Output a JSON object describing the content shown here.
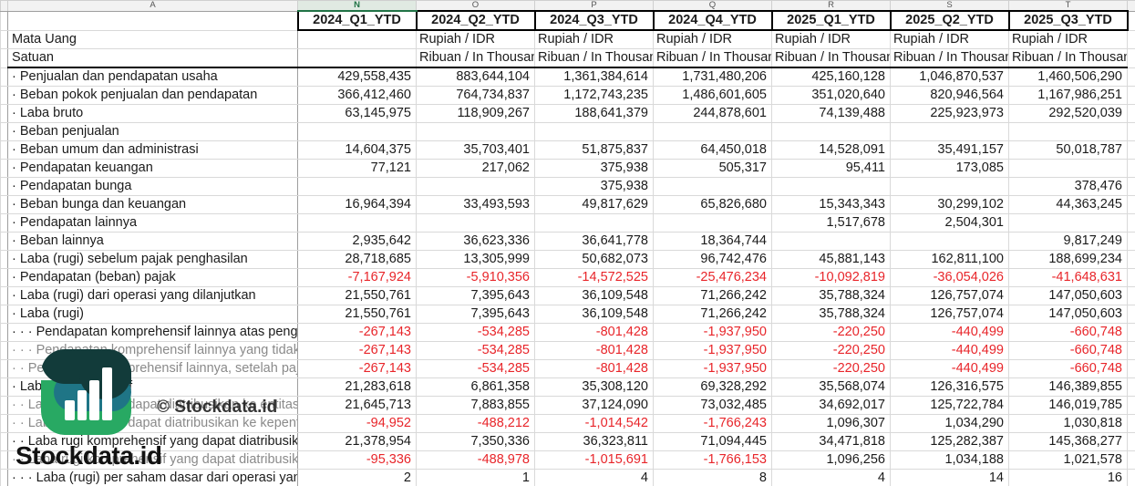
{
  "sheet": {
    "column_letters": [
      "A",
      "N",
      "O",
      "P",
      "Q",
      "R",
      "S",
      "T"
    ],
    "selected_column": "N",
    "headers": [
      "2024_Q1_YTD",
      "2024_Q2_YTD",
      "2024_Q3_YTD",
      "2024_Q4_YTD",
      "2025_Q1_YTD",
      "2025_Q2_YTD",
      "2025_Q3_YTD"
    ],
    "rows": [
      {
        "label": "Mata Uang",
        "type": "text",
        "muted": false,
        "values": [
          "",
          "Rupiah / IDR",
          "Rupiah / IDR",
          "Rupiah / IDR",
          "Rupiah / IDR",
          "Rupiah / IDR",
          "Rupiah / IDR"
        ]
      },
      {
        "label": "Satuan",
        "type": "text",
        "muted": false,
        "values": [
          "",
          "Ribuan / In Thousand",
          "Ribuan / In Thousand",
          "Ribuan / In Thousand",
          "Ribuan / In Thousand",
          "Ribuan / In Thousand",
          "Ribuan / In Thousand"
        ]
      },
      {
        "label": "· Penjualan dan pendapatan usaha",
        "type": "num",
        "muted": false,
        "values": [
          "429,558,435",
          "883,644,104",
          "1,361,384,614",
          "1,731,480,206",
          "425,160,128",
          "1,046,870,537",
          "1,460,506,290"
        ]
      },
      {
        "label": "· Beban pokok penjualan dan pendapatan",
        "type": "num",
        "muted": false,
        "values": [
          "366,412,460",
          "764,734,837",
          "1,172,743,235",
          "1,486,601,605",
          "351,020,640",
          "820,946,564",
          "1,167,986,251"
        ]
      },
      {
        "label": "· Laba bruto",
        "type": "num",
        "muted": false,
        "values": [
          "63,145,975",
          "118,909,267",
          "188,641,379",
          "244,878,601",
          "74,139,488",
          "225,923,973",
          "292,520,039"
        ]
      },
      {
        "label": "· Beban penjualan",
        "type": "num",
        "muted": false,
        "values": [
          "",
          "",
          "",
          "",
          "",
          "",
          ""
        ]
      },
      {
        "label": "· Beban umum dan administrasi",
        "type": "num",
        "muted": false,
        "values": [
          "14,604,375",
          "35,703,401",
          "51,875,837",
          "64,450,018",
          "14,528,091",
          "35,491,157",
          "50,018,787"
        ]
      },
      {
        "label": "· Pendapatan keuangan",
        "type": "num",
        "muted": false,
        "values": [
          "77,121",
          "217,062",
          "375,938",
          "505,317",
          "95,411",
          "173,085",
          ""
        ]
      },
      {
        "label": "· Pendapatan bunga",
        "type": "num",
        "muted": false,
        "values": [
          "",
          "",
          "375,938",
          "",
          "",
          "",
          "378,476"
        ]
      },
      {
        "label": "· Beban bunga dan keuangan",
        "type": "num",
        "muted": false,
        "values": [
          "16,964,394",
          "33,493,593",
          "49,817,629",
          "65,826,680",
          "15,343,343",
          "30,299,102",
          "44,363,245"
        ]
      },
      {
        "label": "· Pendapatan lainnya",
        "type": "num",
        "muted": false,
        "values": [
          "",
          "",
          "",
          "",
          "1,517,678",
          "2,504,301",
          ""
        ]
      },
      {
        "label": "· Beban lainnya",
        "type": "num",
        "muted": false,
        "values": [
          "2,935,642",
          "36,623,336",
          "36,641,778",
          "18,364,744",
          "",
          "",
          "9,817,249"
        ]
      },
      {
        "label": "· Laba (rugi) sebelum pajak penghasilan",
        "type": "num",
        "muted": false,
        "values": [
          "28,718,685",
          "13,305,999",
          "50,682,073",
          "96,742,476",
          "45,881,143",
          "162,811,100",
          "188,699,234"
        ]
      },
      {
        "label": "· Pendapatan (beban) pajak",
        "type": "num",
        "muted": false,
        "values": [
          "-7,167,924",
          "-5,910,356",
          "-14,572,525",
          "-25,476,234",
          "-10,092,819",
          "-36,054,026",
          "-41,648,631"
        ]
      },
      {
        "label": "· Laba (rugi) dari operasi yang dilanjutkan",
        "type": "num",
        "muted": false,
        "values": [
          "21,550,761",
          "7,395,643",
          "36,109,548",
          "71,266,242",
          "35,788,324",
          "126,757,074",
          "147,050,603"
        ]
      },
      {
        "label": "· Laba (rugi)",
        "type": "num",
        "muted": false,
        "values": [
          "21,550,761",
          "7,395,643",
          "36,109,548",
          "71,266,242",
          "35,788,324",
          "126,757,074",
          "147,050,603"
        ]
      },
      {
        "label": "· · · Pendapatan komprehensif lainnya atas pengukuran",
        "type": "num",
        "muted": false,
        "values": [
          "-267,143",
          "-534,285",
          "-801,428",
          "-1,937,950",
          "-220,250",
          "-440,499",
          "-660,748"
        ]
      },
      {
        "label": "· · · Pendapatan komprehensif lainnya yang tidak akan",
        "type": "num",
        "muted": true,
        "values": [
          "-267,143",
          "-534,285",
          "-801,428",
          "-1,937,950",
          "-220,250",
          "-440,499",
          "-660,748"
        ]
      },
      {
        "label": "· · Pendapatan komprehensif lainnya, setelah pajak",
        "type": "num",
        "muted": true,
        "values": [
          "-267,143",
          "-534,285",
          "-801,428",
          "-1,937,950",
          "-220,250",
          "-440,499",
          "-660,748"
        ]
      },
      {
        "label": "· Laba komprehensif",
        "type": "num",
        "muted": false,
        "values": [
          "21,283,618",
          "6,861,358",
          "35,308,120",
          "69,328,292",
          "35,568,074",
          "126,316,575",
          "146,389,855"
        ]
      },
      {
        "label": "· · Laba (rugi) yang dapat diatribusikan ke entitas induk",
        "type": "num",
        "muted": true,
        "values": [
          "21,645,713",
          "7,883,855",
          "37,124,090",
          "73,032,485",
          "34,692,017",
          "125,722,784",
          "146,019,785"
        ]
      },
      {
        "label": "· · Laba (rugi) yang dapat diatribusikan ke kepentingan",
        "type": "num",
        "muted": true,
        "values": [
          "-94,952",
          "-488,212",
          "-1,014,542",
          "-1,766,243",
          "1,096,307",
          "1,034,290",
          "1,030,818"
        ]
      },
      {
        "label": "· · Laba rugi komprehensif yang dapat diatribusikan",
        "type": "num",
        "muted": false,
        "values": [
          "21,378,954",
          "7,350,336",
          "36,323,811",
          "71,094,445",
          "34,471,818",
          "125,282,387",
          "145,368,277"
        ]
      },
      {
        "label": "· · Laba rugi komprehensif yang dapat diatribusikan",
        "type": "num",
        "muted": true,
        "values": [
          "-95,336",
          "-488,978",
          "-1,015,691",
          "-1,766,153",
          "1,096,256",
          "1,034,188",
          "1,021,578"
        ]
      },
      {
        "label": "· · · Laba (rugi) per saham dasar dari operasi yang dil",
        "type": "num",
        "muted": false,
        "values": [
          "2",
          "1",
          "4",
          "8",
          "4",
          "14",
          "16"
        ]
      }
    ]
  },
  "watermark": {
    "logo_text": "Stockdata.id",
    "copyright_text": "© Stockdata.id"
  },
  "colors": {
    "negative": "#e8252a",
    "muted_label": "#8a8a8a",
    "selected_column_green": "#217346",
    "header_border": "#000000",
    "logo_dark": "#123b3a",
    "logo_teal": "#1f7586",
    "logo_green": "#28a963"
  },
  "logo_bar_heights_pct": [
    23,
    35,
    47,
    62
  ]
}
